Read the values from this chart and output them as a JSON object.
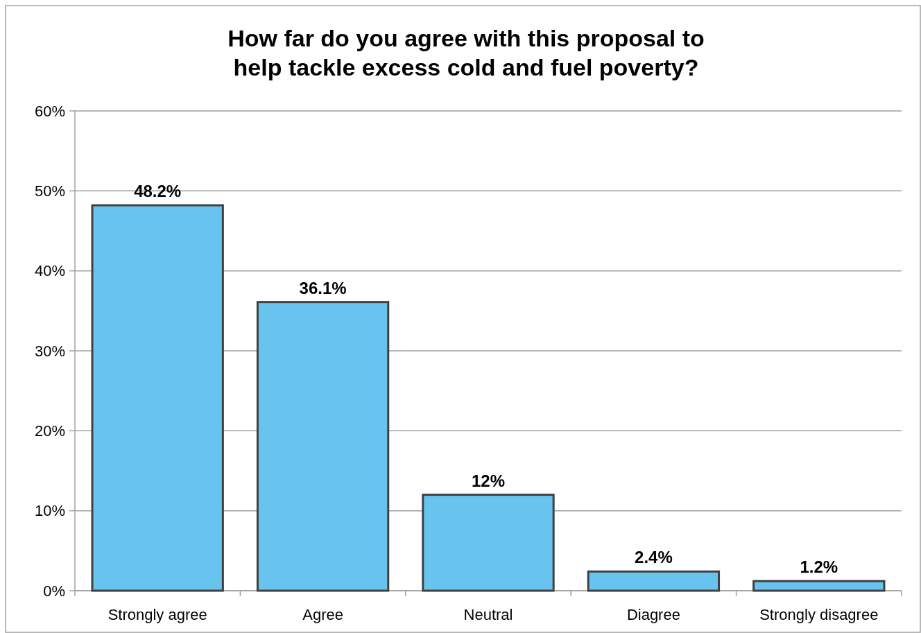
{
  "chart_data": {
    "type": "bar",
    "title": "How far do you agree with this proposal to help tackle excess cold and fuel poverty?",
    "categories": [
      "Strongly agree",
      "Agree",
      "Neutral",
      "Diagree",
      "Strongly disagree"
    ],
    "values": [
      48.2,
      36.1,
      12,
      2.4,
      1.2
    ],
    "value_labels": [
      "48.2%",
      "36.1%",
      "12%",
      "2.4%",
      "1.2%"
    ],
    "color": "#68c4ee",
    "ylim": [
      0,
      60
    ],
    "yticks": [
      {
        "value": 0,
        "label": "0%"
      },
      {
        "value": 10,
        "label": "10%"
      },
      {
        "value": 20,
        "label": "20%"
      },
      {
        "value": 30,
        "label": "30%"
      },
      {
        "value": 40,
        "label": "40%"
      },
      {
        "value": 50,
        "label": "50%"
      },
      {
        "value": 60,
        "label": "60%"
      }
    ],
    "grid": "y"
  }
}
